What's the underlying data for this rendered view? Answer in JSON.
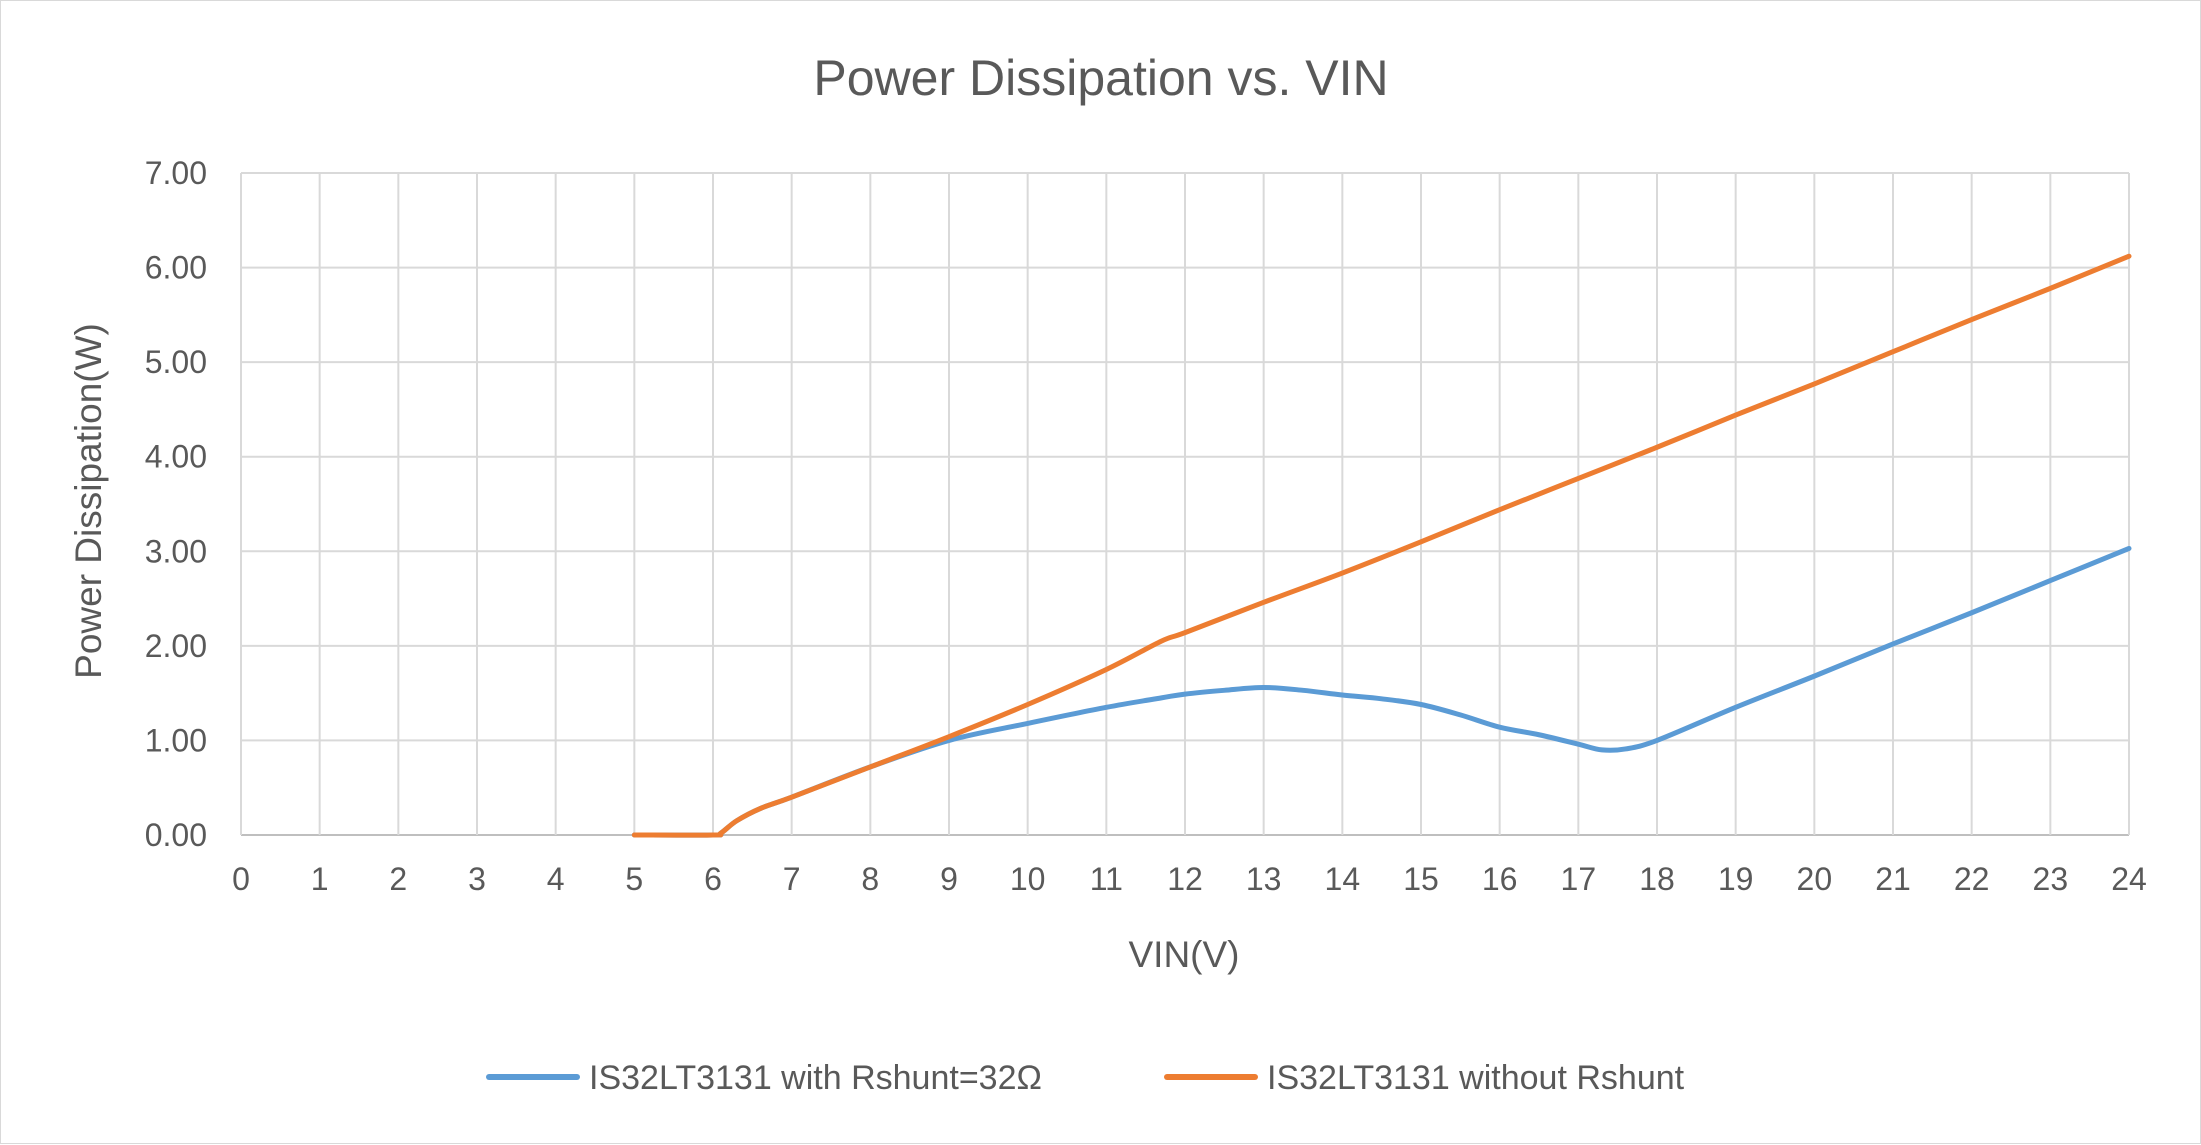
{
  "chart_data": {
    "type": "line",
    "title": "Power Dissipation vs. VIN",
    "xlabel": "VIN(V)",
    "ylabel": "Power Dissipation(W)",
    "xlim": [
      0,
      24
    ],
    "ylim": [
      0,
      7
    ],
    "x_ticks": [
      "0",
      "1",
      "2",
      "3",
      "4",
      "5",
      "6",
      "7",
      "8",
      "9",
      "10",
      "11",
      "12",
      "13",
      "14",
      "15",
      "16",
      "17",
      "18",
      "19",
      "20",
      "21",
      "22",
      "23",
      "24"
    ],
    "y_ticks": [
      "0.00",
      "1.00",
      "2.00",
      "3.00",
      "4.00",
      "5.00",
      "6.00",
      "7.00"
    ],
    "grid": true,
    "legend_position": "bottom",
    "series": [
      {
        "name": "IS32LT3131 with Rshunt=32Ω",
        "color": "#5b9bd5",
        "points": [
          [
            5,
            0
          ],
          [
            6,
            0
          ],
          [
            6.1,
            0.02
          ],
          [
            6.3,
            0.15
          ],
          [
            6.6,
            0.28
          ],
          [
            7,
            0.4
          ],
          [
            8,
            0.72
          ],
          [
            9,
            1.0
          ],
          [
            10,
            1.18
          ],
          [
            11,
            1.35
          ],
          [
            11.7,
            1.45
          ],
          [
            12,
            1.49
          ],
          [
            12.5,
            1.53
          ],
          [
            13,
            1.56
          ],
          [
            13.5,
            1.53
          ],
          [
            14,
            1.48
          ],
          [
            14.5,
            1.44
          ],
          [
            15,
            1.38
          ],
          [
            15.5,
            1.27
          ],
          [
            16,
            1.14
          ],
          [
            16.5,
            1.06
          ],
          [
            17,
            0.96
          ],
          [
            17.3,
            0.9
          ],
          [
            17.6,
            0.91
          ],
          [
            18,
            1.0
          ],
          [
            19,
            1.35
          ],
          [
            20,
            1.68
          ],
          [
            21,
            2.02
          ],
          [
            22,
            2.35
          ],
          [
            23,
            2.69
          ],
          [
            24,
            3.03
          ]
        ]
      },
      {
        "name": "IS32LT3131 without Rshunt",
        "color": "#ed7d31",
        "points": [
          [
            5,
            0
          ],
          [
            6,
            0
          ],
          [
            6.1,
            0.02
          ],
          [
            6.3,
            0.15
          ],
          [
            6.6,
            0.28
          ],
          [
            7,
            0.4
          ],
          [
            8,
            0.72
          ],
          [
            9,
            1.04
          ],
          [
            10,
            1.38
          ],
          [
            11,
            1.75
          ],
          [
            11.7,
            2.05
          ],
          [
            12,
            2.14
          ],
          [
            13,
            2.46
          ],
          [
            14,
            2.77
          ],
          [
            15,
            3.1
          ],
          [
            16,
            3.44
          ],
          [
            17,
            3.77
          ],
          [
            18,
            4.1
          ],
          [
            19,
            4.44
          ],
          [
            20,
            4.77
          ],
          [
            21,
            5.11
          ],
          [
            22,
            5.45
          ],
          [
            23,
            5.78
          ],
          [
            24,
            6.12
          ]
        ]
      }
    ]
  }
}
